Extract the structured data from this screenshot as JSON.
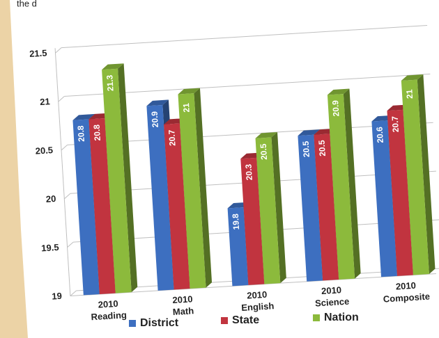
{
  "caption_fragment": "the d",
  "chart_data": {
    "type": "bar3d",
    "categories": [
      [
        "2010",
        "Reading"
      ],
      [
        "2010",
        "Math"
      ],
      [
        "2010",
        "English"
      ],
      [
        "2010",
        "Science"
      ],
      [
        "2010",
        "Composite"
      ]
    ],
    "series": [
      {
        "name": "District",
        "color": "#3d6fc0",
        "values": [
          20.8,
          20.9,
          19.8,
          20.5,
          20.6
        ]
      },
      {
        "name": "State",
        "color": "#c1343f",
        "values": [
          20.8,
          20.7,
          20.3,
          20.5,
          20.7
        ]
      },
      {
        "name": "Nation",
        "color": "#8cba3c",
        "values": [
          21.3,
          21,
          20.5,
          20.9,
          21
        ]
      }
    ],
    "ylim": [
      19,
      21.5
    ],
    "yticks": [
      19,
      19.5,
      20,
      20.5,
      21,
      21.5
    ],
    "grid": true,
    "legend": "bottom"
  }
}
